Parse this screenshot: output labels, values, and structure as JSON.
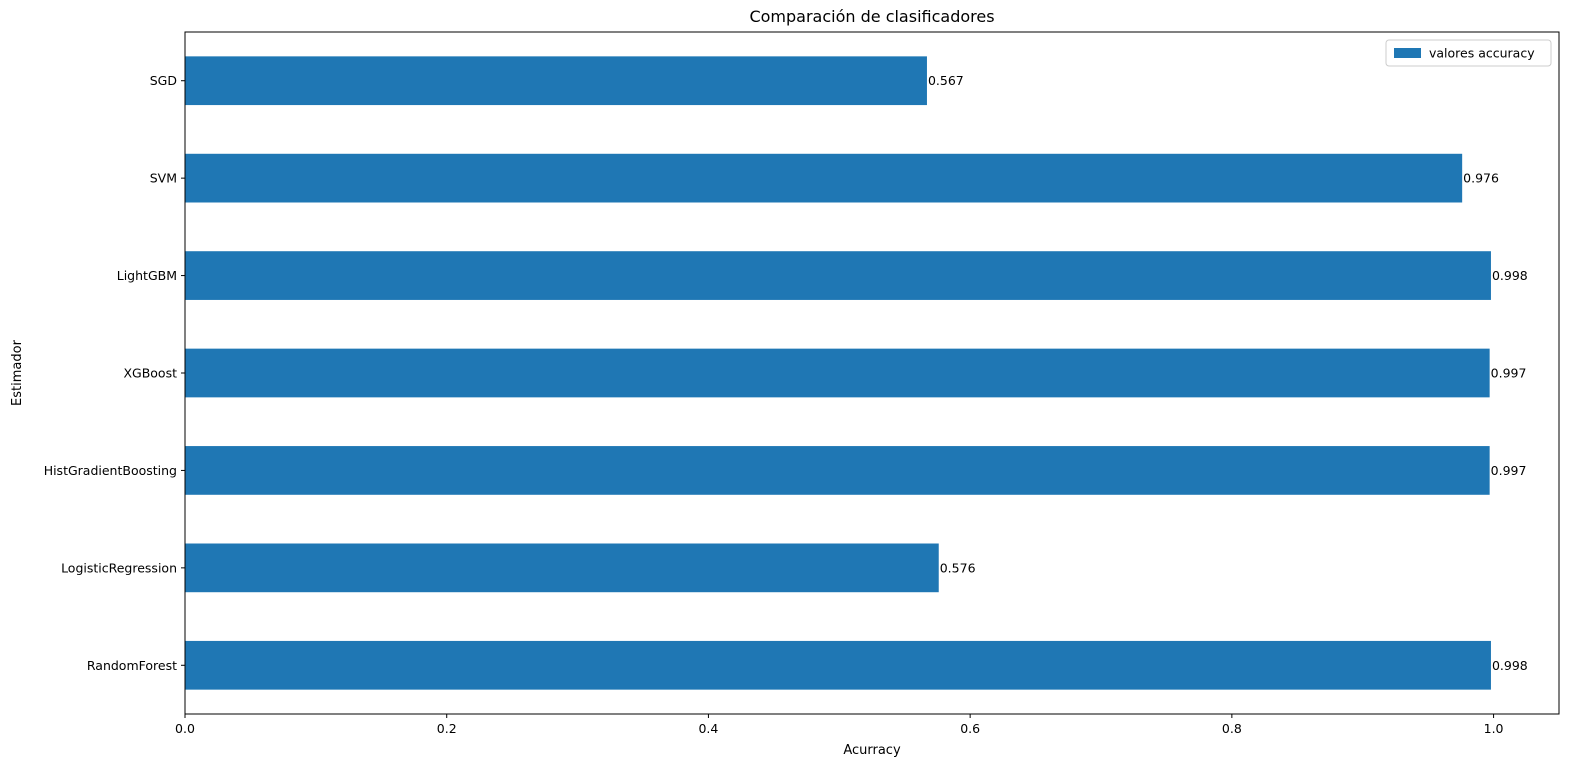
{
  "chart_data": {
    "type": "bar",
    "orientation": "horizontal",
    "title": "Comparación de clasificadores",
    "xlabel": "Acurracy",
    "ylabel": "Estimador",
    "xlim": [
      0,
      1.05
    ],
    "x_ticks": [
      0.0,
      0.2,
      0.4,
      0.6,
      0.8,
      1.0
    ],
    "x_tick_labels": [
      "0.0",
      "0.2",
      "0.4",
      "0.6",
      "0.8",
      "1.0"
    ],
    "categories": [
      "RandomForest",
      "LogisticRegression",
      "HistGradientBoosting",
      "XGBoost",
      "LightGBM",
      "SVM",
      "SGD"
    ],
    "series": [
      {
        "name": "valores accuracy",
        "color": "#1f77b4",
        "values": [
          0.998,
          0.576,
          0.997,
          0.997,
          0.998,
          0.976,
          0.567
        ],
        "data_labels": [
          "0.998",
          "0.576",
          "0.997",
          "0.997",
          "0.998",
          "0.976",
          "0.567"
        ]
      }
    ],
    "legend_position": "top-right",
    "grid": false
  }
}
